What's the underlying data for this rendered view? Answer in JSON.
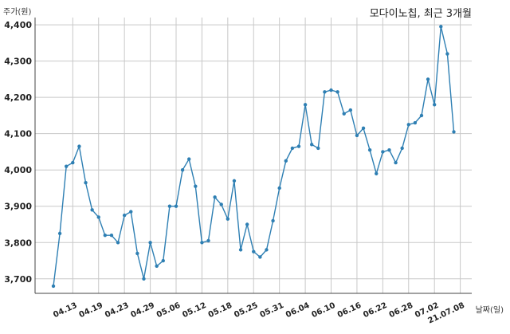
{
  "chart_data": {
    "type": "line",
    "title": "모다이노칩, 최근 3개월",
    "ylabel": "주가(원)",
    "xlabel": "날짜(일)",
    "ylim": [
      3660,
      4420
    ],
    "yticks": [
      3700,
      3800,
      3900,
      4000,
      4100,
      4200,
      4300,
      4400
    ],
    "ytick_labels": [
      "3,700",
      "3,800",
      "3,900",
      "4,000",
      "4,100",
      "4,200",
      "4,300",
      "4,400"
    ],
    "xticks": [
      {
        "index": 3,
        "label": "04.13"
      },
      {
        "index": 7,
        "label": "04.19"
      },
      {
        "index": 11,
        "label": "04.23"
      },
      {
        "index": 15,
        "label": "04.29"
      },
      {
        "index": 19,
        "label": "05.06"
      },
      {
        "index": 23,
        "label": "05.12"
      },
      {
        "index": 27,
        "label": "05.18"
      },
      {
        "index": 31,
        "label": "05.25"
      },
      {
        "index": 35,
        "label": "05.31"
      },
      {
        "index": 39,
        "label": "06.04"
      },
      {
        "index": 43,
        "label": "06.10"
      },
      {
        "index": 47,
        "label": "06.16"
      },
      {
        "index": 51,
        "label": "06.22"
      },
      {
        "index": 55,
        "label": "06.28"
      },
      {
        "index": 59,
        "label": "07.02"
      },
      {
        "index": 63,
        "label": "21.07.08"
      }
    ],
    "grid": true,
    "color": "#2e7fb3",
    "values": [
      3680,
      3825,
      4010,
      4020,
      4065,
      3965,
      3890,
      3870,
      3820,
      3820,
      3800,
      3875,
      3885,
      3770,
      3700,
      3800,
      3735,
      3750,
      3900,
      3900,
      4000,
      4030,
      3955,
      3800,
      3805,
      3925,
      3905,
      3865,
      3970,
      3780,
      3850,
      3775,
      3760,
      3780,
      3860,
      3950,
      4025,
      4060,
      4065,
      4180,
      4070,
      4060,
      4215,
      4220,
      4215,
      4155,
      4165,
      4095,
      4115,
      4055,
      3990,
      4050,
      4055,
      4020,
      4060,
      4125,
      4130,
      4150,
      4250,
      4180,
      4395,
      4320,
      4105
    ]
  }
}
